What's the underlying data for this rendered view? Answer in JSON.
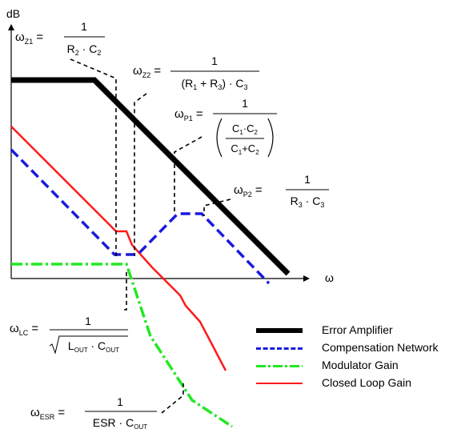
{
  "axes": {
    "y_label": "dB",
    "x_label": "ω"
  },
  "colors": {
    "error_amplifier": "#000000",
    "compensation_network": "#1a1adf",
    "modulator_gain": "#22e822",
    "closed_loop_gain": "#ff1a1a"
  },
  "formulas": {
    "wz1": {
      "sym": "ω",
      "sub": "Z1",
      "num": "1",
      "den": [
        "R",
        "2",
        " · C",
        "2"
      ]
    },
    "wz2": {
      "sym": "ω",
      "sub": "Z2",
      "num": "1",
      "den": [
        "(R",
        "1",
        " + R",
        "3",
        ") · C",
        "3"
      ]
    },
    "wp1": {
      "sym": "ω",
      "sub": "P1",
      "num": "1",
      "inner_num": [
        "C",
        "1",
        "·C",
        "2"
      ],
      "inner_den": [
        "C",
        "1",
        "+C",
        "2"
      ]
    },
    "wp2": {
      "sym": "ω",
      "sub": "P2",
      "num": "1",
      "den": [
        "R",
        "3",
        " · C",
        "3"
      ]
    },
    "wlc": {
      "sym": "ω",
      "sub": "LC",
      "num": "1",
      "den": [
        "L",
        "OUT",
        " · C",
        "OUT"
      ]
    },
    "wesr": {
      "sym": "ω",
      "sub": "ESR",
      "num": "1",
      "den": [
        "ESR · C",
        "OUT"
      ]
    }
  },
  "legend": [
    {
      "key": "error_amplifier",
      "label": "Error Amplifier",
      "style": "solid",
      "width": 6
    },
    {
      "key": "compensation_network",
      "label": "Compensation Network",
      "style": "dashed",
      "width": 3
    },
    {
      "key": "modulator_gain",
      "label": "Modulator Gain",
      "style": "dashdot",
      "width": 3
    },
    {
      "key": "closed_loop_gain",
      "label": "Closed Loop Gain",
      "style": "solid",
      "width": 2
    }
  ]
}
